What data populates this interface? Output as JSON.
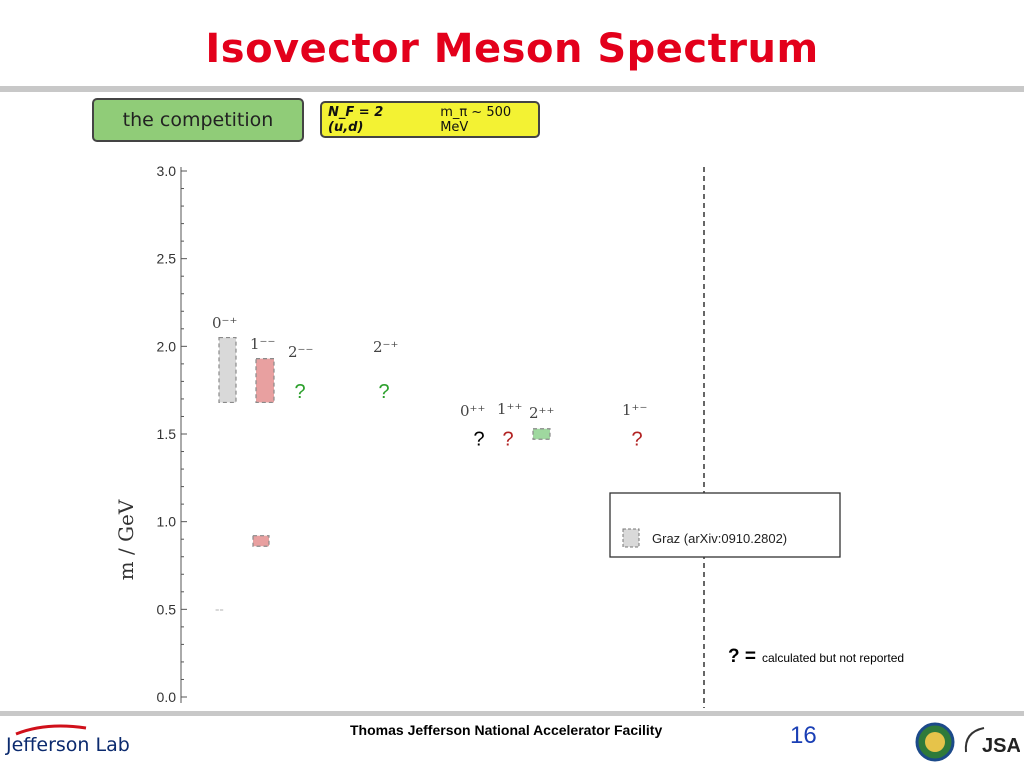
{
  "slide": {
    "title": "Isovector Meson Spectrum",
    "badge_competition": "the competition",
    "badge_nf": "N_F = 2 (u,d)",
    "badge_mpi": "m_π ~ 500 MeV",
    "footer_org": "Thomas Jefferson National Accelerator Facility",
    "page_number": "16",
    "logo_left_text": "Jefferson Lab",
    "logo_right_text": "JSA"
  },
  "chart_data": {
    "type": "scatter",
    "ylabel": "m / GeV",
    "ylim": [
      0.0,
      3.0
    ],
    "yticks": [
      "0.0",
      "0.5",
      "1.0",
      "1.5",
      "2.0",
      "2.5",
      "3.0"
    ],
    "channels": [
      {
        "label": "0⁻⁺",
        "mass_range": [
          1.68,
          2.05
        ],
        "color": "#d9d9d9"
      },
      {
        "label": "--",
        "mass_range": [
          0.5,
          0.5
        ],
        "color": "#b0b0b0"
      },
      {
        "label": "1⁻⁻",
        "mass_range": [
          1.68,
          1.93
        ],
        "color": "#e8a0a0"
      },
      {
        "label": "1⁻⁻",
        "mass_range": [
          0.86,
          0.92
        ],
        "color": "#e8a0a0"
      },
      {
        "label": "2⁻⁻",
        "mass_range": [
          1.75,
          1.75
        ],
        "color": "#2ca02c"
      },
      {
        "label": "2⁻⁺",
        "mass_range": [
          1.75,
          1.75
        ],
        "color": "#2ca02c"
      },
      {
        "label": "0⁺⁺",
        "mass_range": [
          1.48,
          1.48
        ],
        "color": "#000000"
      },
      {
        "label": "1⁺⁺",
        "mass_range": [
          1.48,
          1.48
        ],
        "color": "#b22222"
      },
      {
        "label": "2⁺⁺",
        "mass_range": [
          1.47,
          1.53
        ],
        "color": "#9fd89f"
      },
      {
        "label": "1⁺⁻",
        "mass_range": [
          1.48,
          1.48
        ],
        "color": "#b22222"
      }
    ],
    "marks": [
      "?",
      "?",
      "?",
      "?",
      "?"
    ],
    "legend": {
      "label": "Graz (arXiv:0910.2802)",
      "placement": "right"
    },
    "annotation": {
      "symbol": "? =",
      "text": "calculated but not reported"
    }
  }
}
